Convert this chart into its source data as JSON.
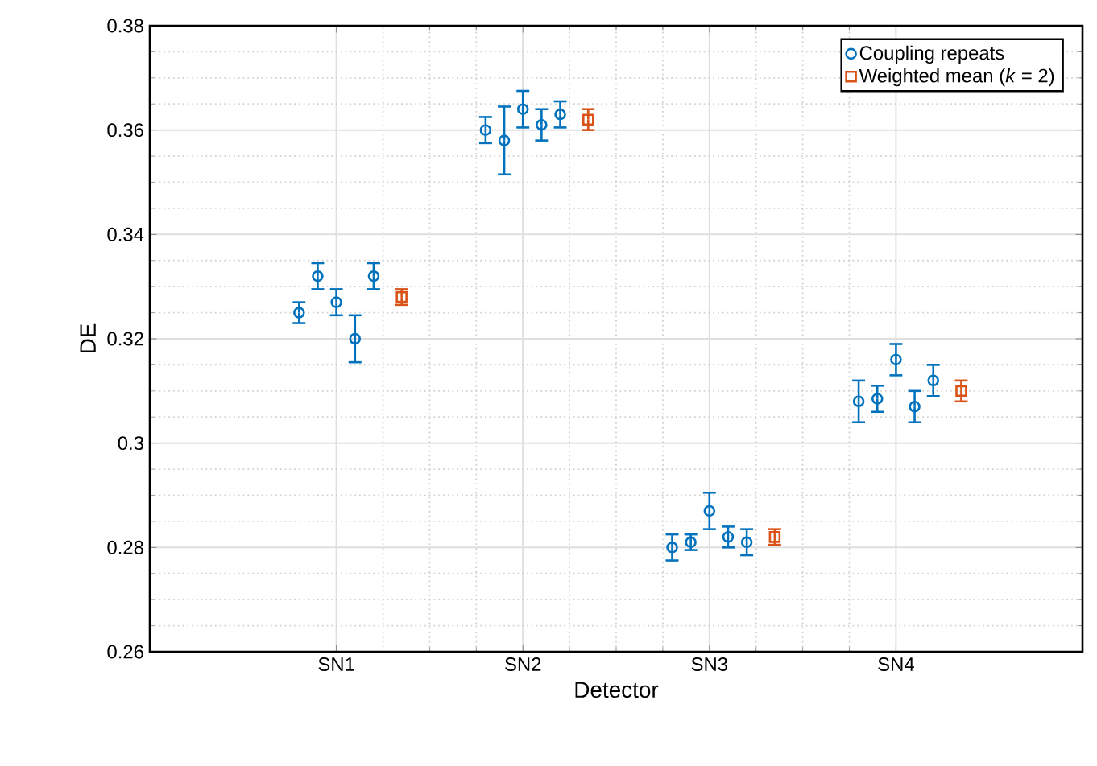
{
  "chart_data": {
    "type": "scatter",
    "xlabel": "Detector",
    "ylabel": "DE",
    "categories": [
      "SN1",
      "SN2",
      "SN3",
      "SN4"
    ],
    "ylim": [
      0.26,
      0.38
    ],
    "yticks": [
      0.26,
      0.28,
      0.3,
      0.32,
      0.34,
      0.36,
      0.38
    ],
    "grid": true,
    "legend": "top right",
    "series": [
      {
        "name": "Coupling repeats",
        "color": "#0072bd",
        "marker": "circle",
        "x": [
          "SN1",
          "SN1",
          "SN1",
          "SN1",
          "SN1",
          "SN2",
          "SN2",
          "SN2",
          "SN2",
          "SN2",
          "SN3",
          "SN3",
          "SN3",
          "SN3",
          "SN3",
          "SN4",
          "SN4",
          "SN4",
          "SN4",
          "SN4"
        ],
        "values": [
          0.325,
          0.332,
          0.327,
          0.32,
          0.332,
          0.36,
          0.358,
          0.364,
          0.361,
          0.363,
          0.28,
          0.281,
          0.287,
          0.282,
          0.281,
          0.308,
          0.3085,
          0.316,
          0.307,
          0.312
        ],
        "errors": [
          0.002,
          0.0025,
          0.0025,
          0.0045,
          0.0025,
          0.0025,
          0.0065,
          0.0035,
          0.003,
          0.0025,
          0.0025,
          0.0015,
          0.0035,
          0.002,
          0.0025,
          0.004,
          0.0025,
          0.003,
          0.003,
          0.003
        ]
      },
      {
        "name": "Weighted mean (*k* = 2)",
        "color": "#d95319",
        "marker": "square",
        "values": [
          0.328,
          0.362,
          0.282,
          0.31
        ],
        "errors": [
          0.0015,
          0.002,
          0.0015,
          0.002
        ]
      }
    ]
  }
}
